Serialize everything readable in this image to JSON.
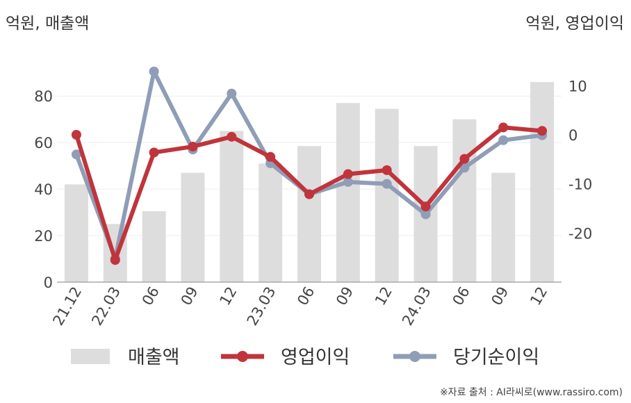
{
  "left_unit_label": "억원, 매출액",
  "right_unit_label": "억원, 영업이익",
  "source_text": "※자료 출처 : AI라씨로(www.rassiro.com)",
  "chart_data": {
    "type": "bar+line",
    "categories": [
      "21.12",
      "22.03",
      "06",
      "09",
      "12",
      "23.03",
      "06",
      "09",
      "12",
      "24.03",
      "06",
      "09",
      "12"
    ],
    "left_axis": {
      "ylim": [
        0,
        95
      ],
      "ticks": [
        0,
        20,
        40,
        60,
        80
      ]
    },
    "right_axis": {
      "ylim": [
        -30,
        15
      ],
      "ticks": [
        -20,
        -10,
        0,
        10
      ]
    },
    "series": [
      {
        "name": "매출액",
        "type": "bar",
        "axis": "left",
        "color": "#dddddd",
        "values": [
          42,
          25,
          30.5,
          47,
          65,
          51,
          58.5,
          77,
          74.5,
          58.5,
          70,
          47,
          86
        ]
      },
      {
        "name": "영업이익",
        "type": "line",
        "axis": "right",
        "color": "#c0343b",
        "values": [
          0,
          -25.5,
          -3.6,
          -2.4,
          -0.4,
          -4.5,
          -12.1,
          -8,
          -7.2,
          -14.6,
          -4.9,
          1.5,
          0.8
        ]
      },
      {
        "name": "당기순이익",
        "type": "line",
        "axis": "right",
        "color": "#8f9db7",
        "values": [
          -4,
          -25.2,
          12.9,
          -3,
          8.4,
          -5.8,
          -12.1,
          -9.6,
          -10,
          -16.2,
          -6.7,
          -1.1,
          -0.1
        ]
      }
    ],
    "grid": true,
    "legend_position": "bottom"
  }
}
